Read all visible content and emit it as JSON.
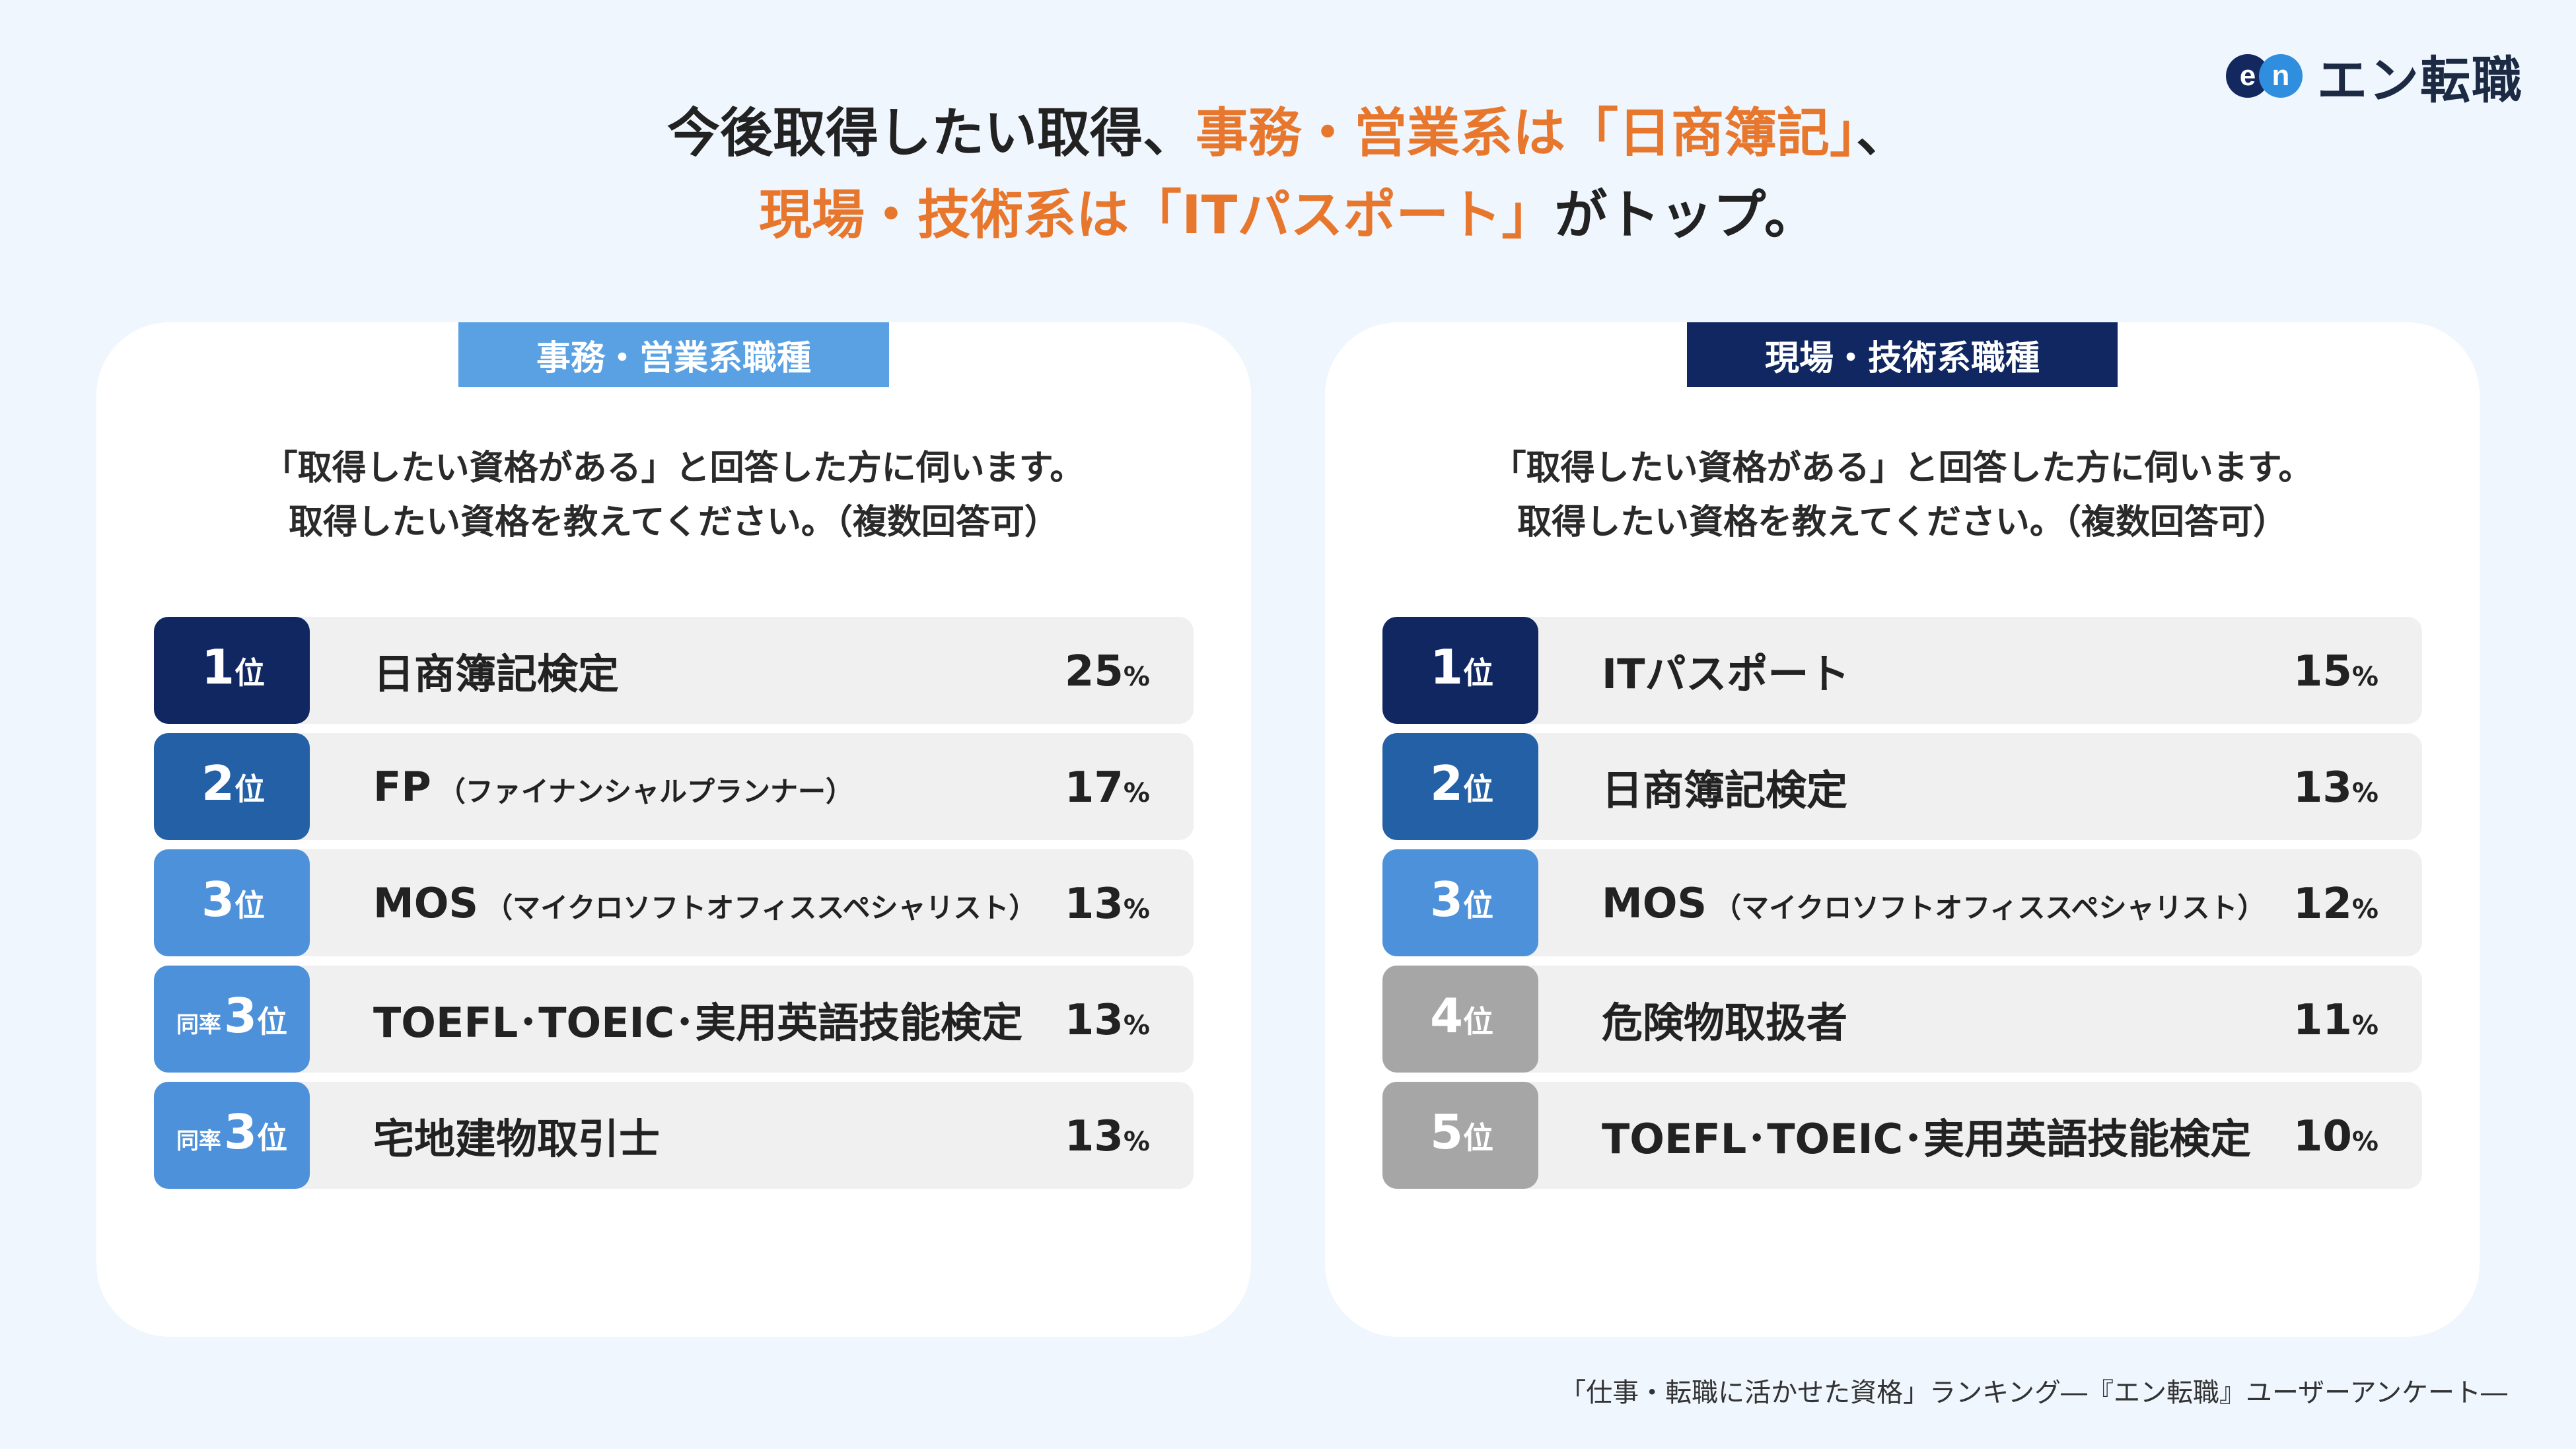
{
  "logo": {
    "mark_e": "e",
    "mark_n": "n",
    "text": "エン転職"
  },
  "headline": {
    "line1_a": "今後取得したい取得、",
    "line1_b": "事務・営業系は「日商簿記」",
    "line1_c": "、",
    "line2_a": "現場・技術系は「ITパスポート」",
    "line2_b": "がトップ。"
  },
  "question": {
    "line1": "「取得したい資格がある」と回答した方に伺います。",
    "line2": "取得したい資格を教えてください。（複数回答可）"
  },
  "left": {
    "tag": "事務・営業系職種",
    "rows": [
      {
        "pre": "",
        "num": "1",
        "suf": "位",
        "name": "日商簿記検定",
        "sub": "",
        "value": "25",
        "unit": "%"
      },
      {
        "pre": "",
        "num": "2",
        "suf": "位",
        "name": "FP",
        "sub": "（ファイナンシャルプランナー）",
        "value": "17",
        "unit": "%"
      },
      {
        "pre": "",
        "num": "3",
        "suf": "位",
        "name": "MOS",
        "sub": "（マイクロソフトオフィススペシャリスト）",
        "value": "13",
        "unit": "%"
      },
      {
        "pre": "同率",
        "num": "3",
        "suf": "位",
        "name": "TOEFL･TOEIC･実用英語技能検定",
        "sub": "",
        "value": "13",
        "unit": "%"
      },
      {
        "pre": "同率",
        "num": "3",
        "suf": "位",
        "name": "宅地建物取引士",
        "sub": "",
        "value": "13",
        "unit": "%"
      }
    ]
  },
  "right": {
    "tag": "現場・技術系職種",
    "rows": [
      {
        "pre": "",
        "num": "1",
        "suf": "位",
        "name": "ITパスポート",
        "sub": "",
        "value": "15",
        "unit": "%"
      },
      {
        "pre": "",
        "num": "2",
        "suf": "位",
        "name": "日商簿記検定",
        "sub": "",
        "value": "13",
        "unit": "%"
      },
      {
        "pre": "",
        "num": "3",
        "suf": "位",
        "name": "MOS",
        "sub": "（マイクロソフトオフィススペシャリスト）",
        "value": "12",
        "unit": "%"
      },
      {
        "pre": "",
        "num": "4",
        "suf": "位",
        "name": "危険物取扱者",
        "sub": "",
        "value": "11",
        "unit": "%"
      },
      {
        "pre": "",
        "num": "5",
        "suf": "位",
        "name": "TOEFL･TOEIC･実用英語技能検定",
        "sub": "",
        "value": "10",
        "unit": "%"
      }
    ]
  },
  "source": "「仕事・転職に活かせた資格」ランキング―『エン転職』ユーザーアンケート―",
  "colors": {
    "accent_orange": "#e8772e",
    "navy": "#102762",
    "mid_blue": "#2360a5",
    "light_blue": "#4d91db",
    "gray": "#a6a6a6",
    "tag_light": "#5aa1e4"
  }
}
